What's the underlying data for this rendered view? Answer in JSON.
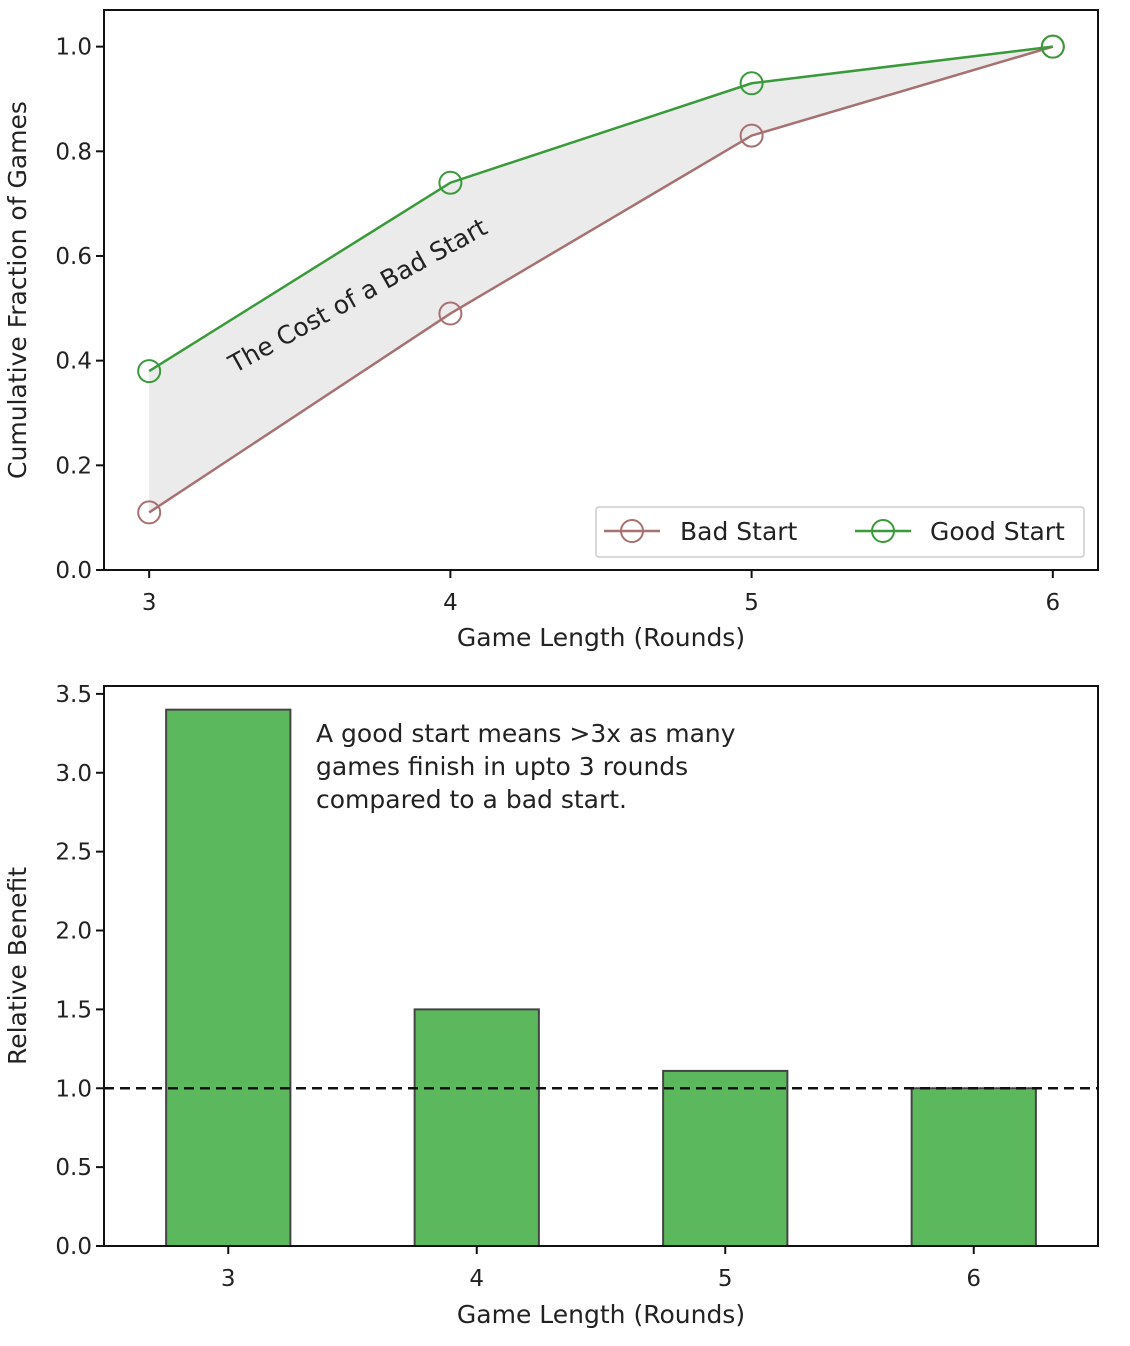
{
  "chart_data": [
    {
      "type": "line",
      "xlabel": "Game Length (Rounds)",
      "ylabel": "Cumulative Fraction of Games",
      "x": [
        3,
        4,
        5,
        6
      ],
      "xticks": [
        "3",
        "4",
        "5",
        "6"
      ],
      "yticks": [
        "0.0",
        "0.2",
        "0.4",
        "0.6",
        "0.8",
        "1.0"
      ],
      "xlim": [
        2.85,
        6.15
      ],
      "ylim": [
        0.0,
        1.07
      ],
      "series": [
        {
          "name": "Bad Start",
          "values": [
            0.11,
            0.49,
            0.83,
            1.0
          ],
          "color": "#a87070"
        },
        {
          "name": "Good Start",
          "values": [
            0.38,
            0.74,
            0.93,
            1.0
          ],
          "color": "#3a9a3a"
        }
      ],
      "fill_between": {
        "color": "#ebebeb"
      },
      "annotation": "The Cost of a Bad Start",
      "legend_position": "lower right",
      "grid": false
    },
    {
      "type": "bar",
      "xlabel": "Game Length (Rounds)",
      "ylabel": "Relative Benefit",
      "categories": [
        "3",
        "4",
        "5",
        "6"
      ],
      "values": [
        3.4,
        1.5,
        1.11,
        1.0
      ],
      "yticks": [
        "0.0",
        "0.5",
        "1.0",
        "1.5",
        "2.0",
        "2.5",
        "3.0",
        "3.5"
      ],
      "ylim": [
        0.0,
        3.55
      ],
      "bar_color": "#5cb85c",
      "reference_line": {
        "y": 1.0,
        "style": "dashed",
        "color": "#111111"
      },
      "annotation": [
        "A good start means >3x as many",
        "games finish in upto 3 rounds",
        "compared to a bad start."
      ],
      "grid": false
    }
  ]
}
